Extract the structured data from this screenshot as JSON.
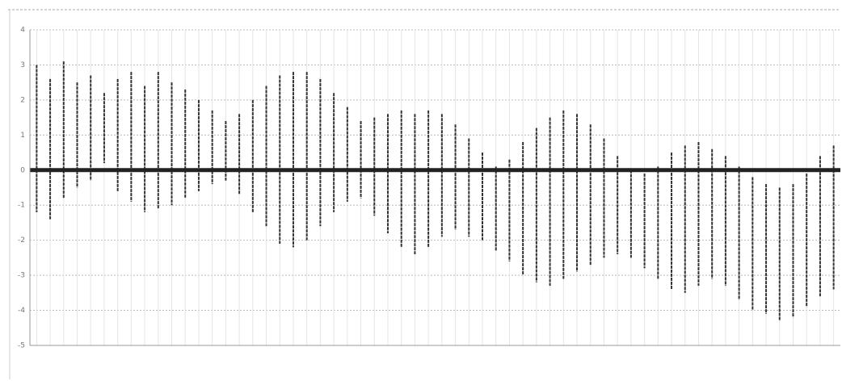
{
  "chart_data": {
    "type": "range",
    "categories": [
      null,
      null,
      null,
      null,
      null,
      null,
      null,
      null,
      null,
      null,
      null,
      null,
      null,
      null,
      null,
      null,
      null,
      null,
      null,
      null,
      null,
      null,
      null,
      null,
      null,
      null,
      null,
      null,
      null,
      null,
      null,
      null,
      null,
      null,
      null,
      null,
      null,
      null,
      null,
      null,
      null,
      null,
      null,
      null,
      null,
      null,
      null,
      null,
      null,
      null,
      null,
      null,
      null,
      null,
      null,
      null,
      null,
      null,
      null,
      null
    ],
    "high": [
      3.0,
      2.6,
      3.1,
      2.5,
      2.7,
      2.2,
      2.6,
      2.8,
      2.4,
      2.8,
      2.5,
      2.3,
      2.0,
      1.7,
      1.4,
      1.6,
      2.0,
      2.4,
      2.7,
      2.8,
      2.8,
      2.6,
      2.2,
      1.8,
      1.4,
      1.5,
      1.6,
      1.7,
      1.6,
      1.7,
      1.6,
      1.3,
      0.9,
      0.5,
      0.1,
      0.3,
      0.8,
      1.2,
      1.5,
      1.7,
      1.6,
      1.3,
      0.9,
      0.4,
      0.0,
      -0.1,
      0.1,
      0.5,
      0.7,
      0.8,
      0.6,
      0.4,
      0.1,
      -0.2,
      -0.4,
      -0.5,
      -0.4,
      -0.1,
      0.4,
      0.7
    ],
    "low": [
      -1.2,
      -1.4,
      -0.8,
      -0.5,
      -0.3,
      0.2,
      -0.6,
      -0.9,
      -1.2,
      -1.1,
      -1.0,
      -0.8,
      -0.6,
      -0.4,
      -0.3,
      -0.7,
      -1.2,
      -1.6,
      -2.1,
      -2.2,
      -2.0,
      -1.6,
      -1.2,
      -0.9,
      -0.8,
      -1.3,
      -1.8,
      -2.2,
      -2.4,
      -2.2,
      -1.9,
      -1.7,
      -1.9,
      -2.0,
      -2.3,
      -2.6,
      -3.0,
      -3.2,
      -3.3,
      -3.1,
      -2.9,
      -2.7,
      -2.5,
      -2.4,
      -2.5,
      -2.8,
      -3.1,
      -3.4,
      -3.5,
      -3.3,
      -3.1,
      -3.3,
      -3.7,
      -4.0,
      -4.1,
      -4.3,
      -4.2,
      -3.9,
      -3.6,
      -3.4
    ],
    "color": "#333333",
    "baseline": 0,
    "ylim": [
      -5,
      4
    ],
    "yticks": [
      -5,
      -4,
      -3,
      -2,
      -1,
      0,
      1,
      2,
      3,
      4
    ],
    "grid": true
  }
}
